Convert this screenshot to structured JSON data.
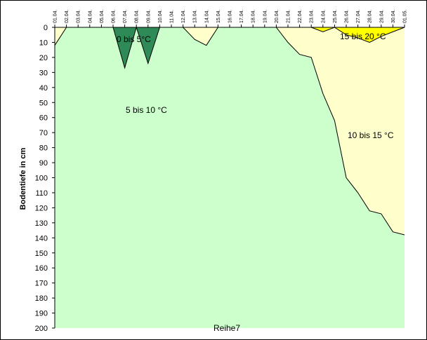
{
  "chart_data": {
    "type": "area",
    "ylabel": "Bodentiefe in cm",
    "series_label": "Reihe7",
    "y_ticks": [
      0,
      10,
      20,
      30,
      40,
      50,
      60,
      70,
      80,
      90,
      100,
      110,
      120,
      130,
      140,
      150,
      160,
      170,
      180,
      190,
      200
    ],
    "ylim": [
      0,
      200
    ],
    "y_inverted": true,
    "x": [
      "01.04.",
      "02.04.",
      "03.04.",
      "04.04.",
      "05.04.",
      "06.04.",
      "07.04.",
      "08.04.",
      "09.04.",
      "10.04.",
      "11.04.",
      "12.04.",
      "13.04.",
      "14.04.",
      "15.04.",
      "16.04.",
      "17.04.",
      "18.04.",
      "19.04.",
      "20.04.",
      "21.04.",
      "22.04.",
      "23.04.",
      "24.04.",
      "25.04.",
      "26.04.",
      "27.04.",
      "28.04.",
      "29.04.",
      "30.04.",
      "01.05."
    ],
    "regions": [
      {
        "name": "0 bis 5 °C",
        "label": "0 bis 5°C",
        "color": "#2e8b57",
        "boundary": [
          null,
          null,
          null,
          null,
          null,
          0,
          27,
          0,
          24,
          0,
          null,
          null,
          null,
          null,
          null,
          null,
          null,
          null,
          null,
          null,
          null,
          null,
          null,
          null,
          null,
          null,
          null,
          null,
          null,
          null,
          null
        ]
      },
      {
        "name": "5 bis 10 °C",
        "label": "5 bis 10 °C",
        "color": "#ccffcc"
      },
      {
        "name": "10 bis 15 °C",
        "label": "10 bis 15 °C",
        "color": "#ffffcc",
        "boundary": [
          12,
          0,
          0,
          0,
          0,
          0,
          0,
          0,
          0,
          0,
          0,
          0,
          8,
          12,
          0,
          0,
          0,
          0,
          0,
          0,
          10,
          18,
          20,
          44,
          62,
          100,
          110,
          122,
          124,
          136,
          138
        ]
      },
      {
        "name": "15 bis 20 °C",
        "label": "15 bis 20 °C",
        "color": "#ffff00",
        "boundary": [
          null,
          null,
          null,
          null,
          null,
          null,
          null,
          null,
          null,
          null,
          null,
          null,
          null,
          null,
          null,
          null,
          null,
          null,
          null,
          null,
          null,
          null,
          0,
          3,
          0,
          5,
          7,
          10,
          6,
          3,
          0
        ]
      }
    ],
    "grid": false,
    "legend": "none"
  }
}
